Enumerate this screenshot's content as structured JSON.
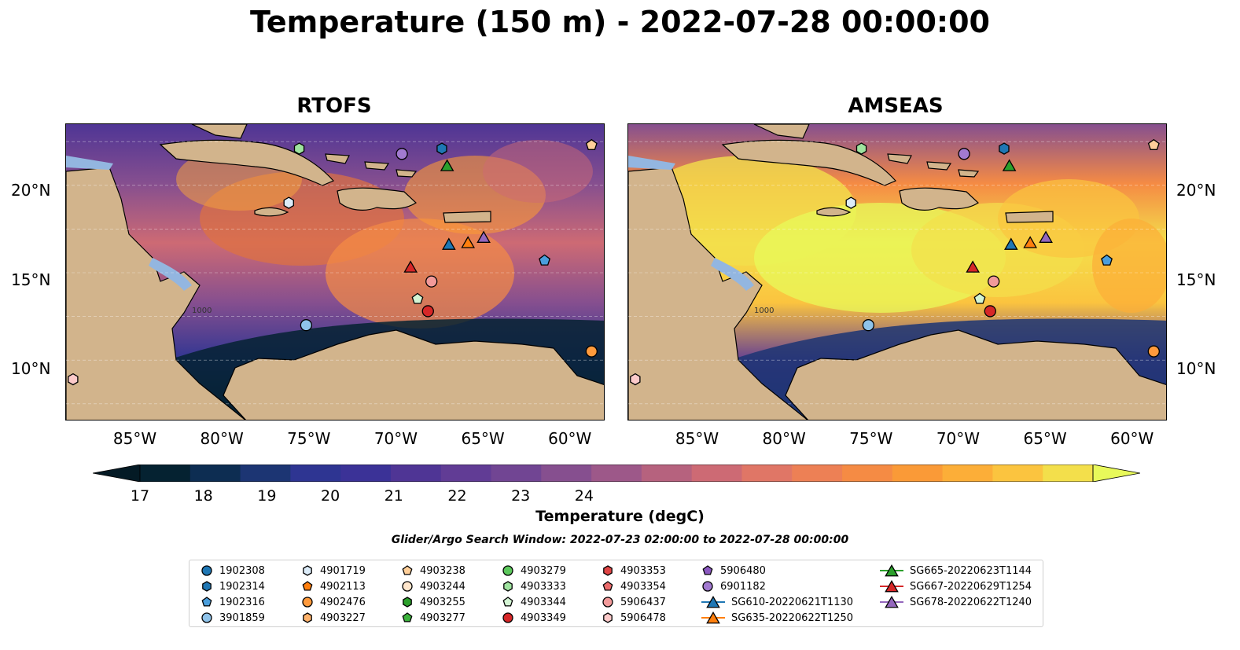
{
  "title": "Temperature (150 m) - 2022-07-28 00:00:00",
  "panels": [
    {
      "title": "RTOFS"
    },
    {
      "title": "AMSEAS"
    }
  ],
  "lon_ticks": [
    "85°W",
    "80°W",
    "75°W",
    "70°W",
    "65°W",
    "60°W"
  ],
  "lat_ticks": [
    "20°N",
    "15°N",
    "10°N"
  ],
  "colorbar": {
    "label": "Temperature (degC)",
    "ticks": [
      "17",
      "18",
      "19",
      "20",
      "21",
      "22",
      "23",
      "24"
    ],
    "colors": [
      "#052231",
      "#0d2d52",
      "#1c3573",
      "#2e3592",
      "#3b3297",
      "#4f3595",
      "#613c95",
      "#714593",
      "#864f8f",
      "#9d5889",
      "#b6627e",
      "#cd6a74",
      "#e07666",
      "#ed8055",
      "#f58b44",
      "#fa9a37",
      "#fcae38",
      "#fbc43f",
      "#f3df4b"
    ],
    "over_color": "#e8f95a",
    "under_color": "#041a25"
  },
  "search_window": "Glider/Argo Search Window: 2022-07-23 02:00:00 to 2022-07-28 00:00:00",
  "contour_label": "1000",
  "legend": [
    {
      "label": "1902308",
      "marker": "circle",
      "color": "#1f77b4"
    },
    {
      "label": "1902314",
      "marker": "hexagon",
      "color": "#1f77b4"
    },
    {
      "label": "1902316",
      "marker": "pentagon",
      "color": "#4a9edc"
    },
    {
      "label": "3901859",
      "marker": "circle",
      "color": "#8fc3ea"
    },
    {
      "label": "4901719",
      "marker": "hexagon",
      "color": "#dcecf9"
    },
    {
      "label": "4902113",
      "marker": "pentagon",
      "color": "#ff7f0e"
    },
    {
      "label": "4902476",
      "marker": "circle",
      "color": "#ff9a3c"
    },
    {
      "label": "4903227",
      "marker": "hexagon",
      "color": "#ffb26b"
    },
    {
      "label": "4903238",
      "marker": "pentagon",
      "color": "#ffcf99"
    },
    {
      "label": "4903244",
      "marker": "circle",
      "color": "#ffe6cc"
    },
    {
      "label": "4903255",
      "marker": "hexagon",
      "color": "#2ca02c"
    },
    {
      "label": "4903277",
      "marker": "pentagon",
      "color": "#3cb33c"
    },
    {
      "label": "4903279",
      "marker": "circle",
      "color": "#5cc85c"
    },
    {
      "label": "4903333",
      "marker": "hexagon",
      "color": "#9fe39f"
    },
    {
      "label": "4903344",
      "marker": "pentagon",
      "color": "#d4f5d4"
    },
    {
      "label": "4903349",
      "marker": "circle",
      "color": "#d62728"
    },
    {
      "label": "4903353",
      "marker": "hexagon",
      "color": "#e04545"
    },
    {
      "label": "4903354",
      "marker": "pentagon",
      "color": "#eb6b6b"
    },
    {
      "label": "5906437",
      "marker": "circle",
      "color": "#f29a9a"
    },
    {
      "label": "5906478",
      "marker": "hexagon",
      "color": "#fccaca"
    },
    {
      "label": "5906480",
      "marker": "pentagon",
      "color": "#8c59c1"
    },
    {
      "label": "6901182",
      "marker": "circle",
      "color": "#a27ad0"
    },
    {
      "label": "SG610-20220621T1130",
      "marker": "triangle-line",
      "color": "#1f77b4"
    },
    {
      "label": "SG635-20220622T1250",
      "marker": "triangle-line",
      "color": "#ff7f0e"
    },
    {
      "label": "SG665-20220623T1144",
      "marker": "triangle-line",
      "color": "#2ca02c"
    },
    {
      "label": "SG667-20220629T1254",
      "marker": "triangle-line",
      "color": "#d62728"
    },
    {
      "label": "SG678-20220622T1240",
      "marker": "triangle-line",
      "color": "#9467bd"
    }
  ],
  "map_extent": {
    "lon": [
      -89,
      -58
    ],
    "lat": [
      7,
      24
    ]
  },
  "features": [
    {
      "id": "6901182",
      "lon": -69.7,
      "lat": 22.3
    },
    {
      "id": "1902314",
      "lon": -67.4,
      "lat": 22.6
    },
    {
      "id": "4903333",
      "lon": -75.6,
      "lat": 22.6
    },
    {
      "id": "SG665-20220623T1144",
      "lon": -67.1,
      "lat": 21.6
    },
    {
      "id": "4901719",
      "lon": -76.2,
      "lat": 19.5
    },
    {
      "id": "SG610-20220621T1130",
      "lon": -67.0,
      "lat": 17.1
    },
    {
      "id": "SG635-20220622T1250",
      "lon": -65.9,
      "lat": 17.2
    },
    {
      "id": "SG678-20220622T1240",
      "lon": -65.0,
      "lat": 17.5
    },
    {
      "id": "SG667-20220629T1254",
      "lon": -69.2,
      "lat": 15.8
    },
    {
      "id": "5906437",
      "lon": -68.0,
      "lat": 15.0
    },
    {
      "id": "4903344",
      "lon": -68.8,
      "lat": 14.0
    },
    {
      "id": "4903349",
      "lon": -68.2,
      "lat": 13.3
    },
    {
      "id": "3901859",
      "lon": -75.2,
      "lat": 12.5
    },
    {
      "id": "4902476",
      "lon": -58.8,
      "lat": 11.0
    },
    {
      "id": "5906478",
      "lon": -88.6,
      "lat": 9.4
    },
    {
      "id": "4903238",
      "lon": -58.8,
      "lat": 22.8
    },
    {
      "id": "1902316",
      "lon": -61.5,
      "lat": 16.2
    }
  ]
}
